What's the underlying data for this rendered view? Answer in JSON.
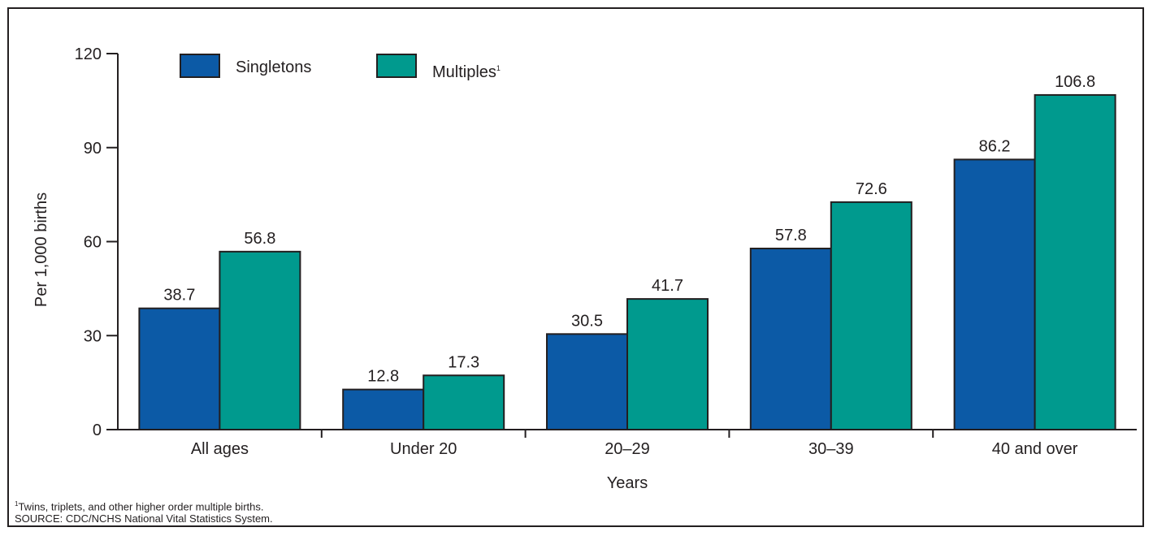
{
  "chart_data": {
    "type": "bar",
    "categories": [
      "All ages",
      "Under 20",
      "20–29",
      "30–39",
      "40 and over"
    ],
    "series": [
      {
        "name": "Singletons",
        "values": [
          38.7,
          12.8,
          30.5,
          57.8,
          86.2
        ],
        "color": "#0c5aa6"
      },
      {
        "name": "Multiples",
        "values": [
          56.8,
          17.3,
          41.7,
          72.6,
          106.8
        ],
        "color": "#009a8e"
      }
    ],
    "legend_sup": "1",
    "xlabel": "Years",
    "ylabel": "Per 1,000 births",
    "ylim": [
      0,
      120
    ],
    "yticks": [
      0,
      30,
      60,
      90,
      120
    ],
    "grid": false,
    "legend_position": "top-left"
  },
  "footnote": {
    "marker": "1",
    "text": "Twins, triplets, and other higher order multiple births.",
    "source": "SOURCE: CDC/NCHS National Vital Statistics System."
  },
  "colors": {
    "axis": "#231f20",
    "bar_stroke": "#231f20"
  }
}
